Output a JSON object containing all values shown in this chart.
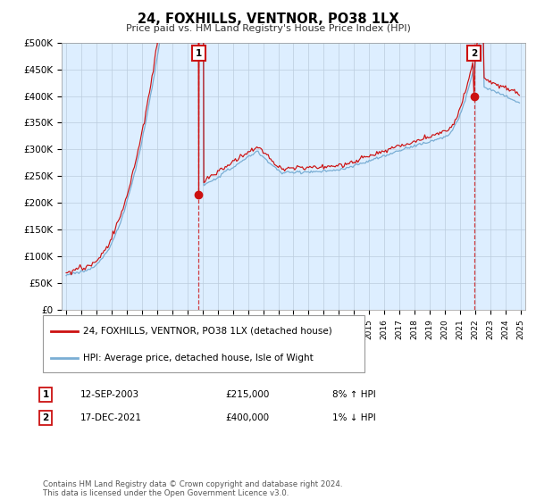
{
  "title": "24, FOXHILLS, VENTNOR, PO38 1LX",
  "subtitle": "Price paid vs. HM Land Registry's House Price Index (HPI)",
  "ylim": [
    0,
    500000
  ],
  "yticks": [
    0,
    50000,
    100000,
    150000,
    200000,
    250000,
    300000,
    350000,
    400000,
    450000,
    500000
  ],
  "ytick_labels": [
    "£0",
    "£50K",
    "£100K",
    "£150K",
    "£200K",
    "£250K",
    "£300K",
    "£350K",
    "£400K",
    "£450K",
    "£500K"
  ],
  "hpi_color": "#7aaed4",
  "price_color": "#cc1111",
  "chart_bg": "#ddeeff",
  "t1_year": 2003.75,
  "t1_price": 215000,
  "t2_year": 2021.917,
  "t2_price": 400000,
  "legend_line1": "24, FOXHILLS, VENTNOR, PO38 1LX (detached house)",
  "legend_line2": "HPI: Average price, detached house, Isle of Wight",
  "transaction1_date": "12-SEP-2003",
  "transaction1_price": "£215,000",
  "transaction1_hpi": "8% ↑ HPI",
  "transaction2_date": "17-DEC-2021",
  "transaction2_price": "£400,000",
  "transaction2_hpi": "1% ↓ HPI",
  "footer": "Contains HM Land Registry data © Crown copyright and database right 2024.\nThis data is licensed under the Open Government Licence v3.0.",
  "background_color": "#ffffff",
  "grid_color": "#bbccdd"
}
